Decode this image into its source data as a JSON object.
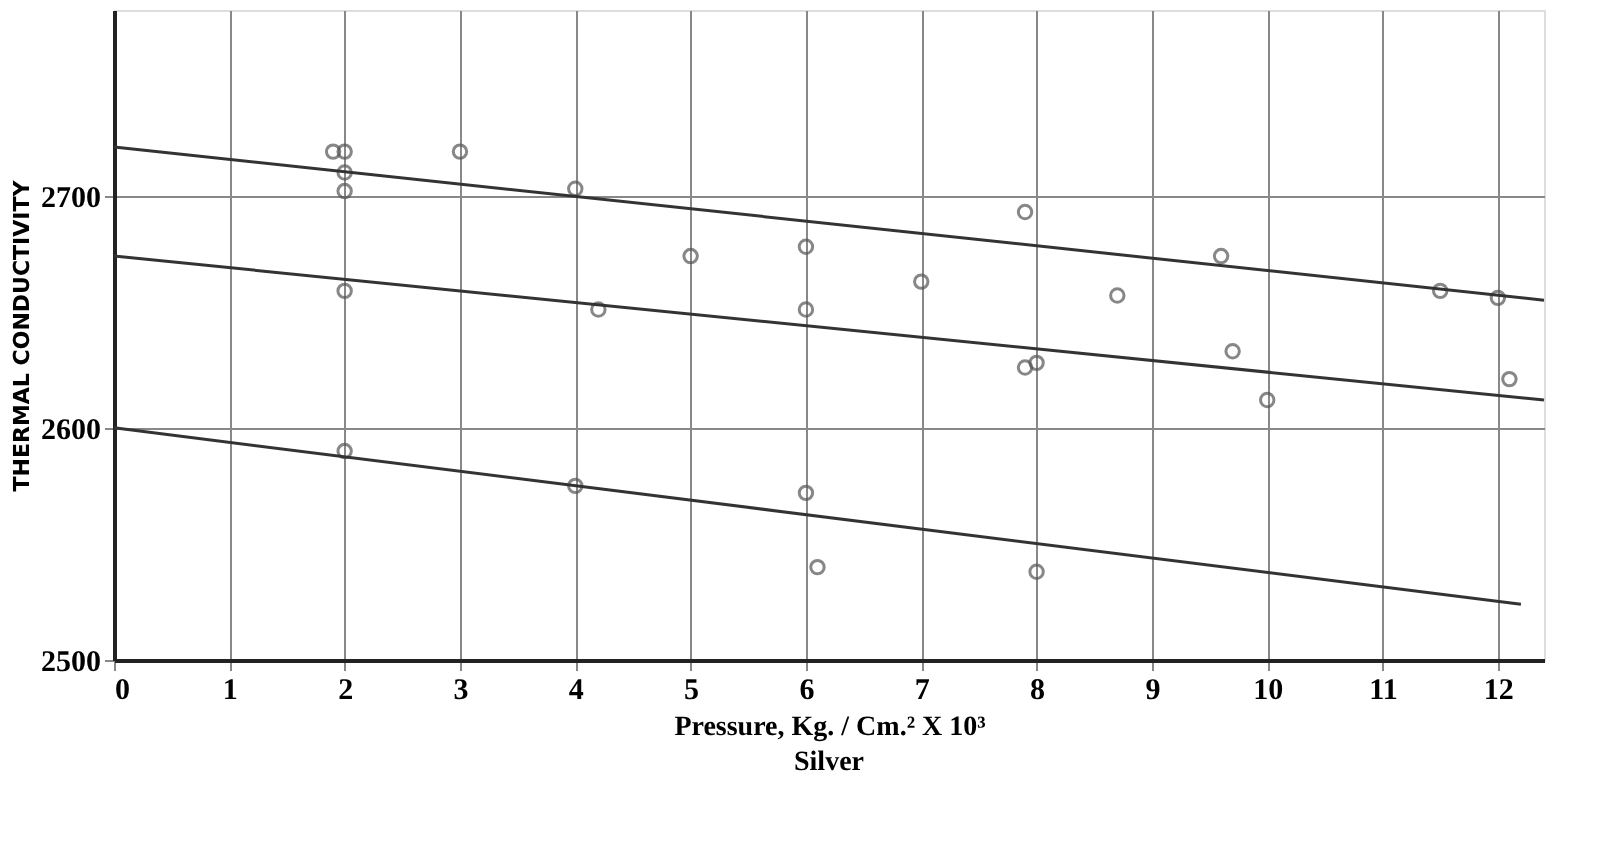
{
  "chart_data": {
    "type": "scatter",
    "title": "Silver",
    "xlabel": "Pressure, Kg. / Cm.² X 10³",
    "ylabel": "THERMAL  CONDUCTIVITY",
    "xlim": [
      0,
      12.4
    ],
    "ylim": [
      2500,
      2780
    ],
    "xticks": [
      0,
      1,
      2,
      3,
      4,
      5,
      6,
      7,
      8,
      9,
      10,
      11,
      12
    ],
    "yticks": [
      2500,
      2600,
      2700
    ],
    "grid": true,
    "series": [
      {
        "color": "#555555",
        "marker": "circle",
        "x": [
          1.9,
          2.0,
          2.0,
          2.0,
          3.0,
          4.0,
          5.0,
          2.0,
          4.2,
          2.0,
          4.0,
          6.0,
          6.0,
          6.0,
          6.1,
          7.0,
          7.9,
          7.9,
          8.0,
          8.0,
          8.7,
          9.6,
          9.7,
          10.0,
          11.5,
          12.0,
          12.1
        ],
        "values": [
          2719,
          2719,
          2710,
          2702,
          2719,
          2703,
          2674,
          2659,
          2651,
          2590,
          2575,
          2678,
          2651,
          2572,
          2540,
          2663,
          2693,
          2626,
          2628,
          2538,
          2657,
          2674,
          2633,
          2612,
          2659,
          2656,
          2621
        ]
      },
      {
        "type": "line",
        "color": "#333333",
        "marker": "none",
        "line_style": "solid",
        "x": [
          0,
          12.4
        ],
        "values": [
          2721,
          2655
        ]
      },
      {
        "type": "line",
        "color": "#333333",
        "marker": "none",
        "line_style": "solid",
        "x": [
          0,
          12.4
        ],
        "values": [
          2674,
          2612
        ]
      },
      {
        "type": "line",
        "color": "#333333",
        "marker": "none",
        "line_style": "solid",
        "x": [
          0,
          12.2
        ],
        "values": [
          2600,
          2524
        ]
      }
    ]
  }
}
